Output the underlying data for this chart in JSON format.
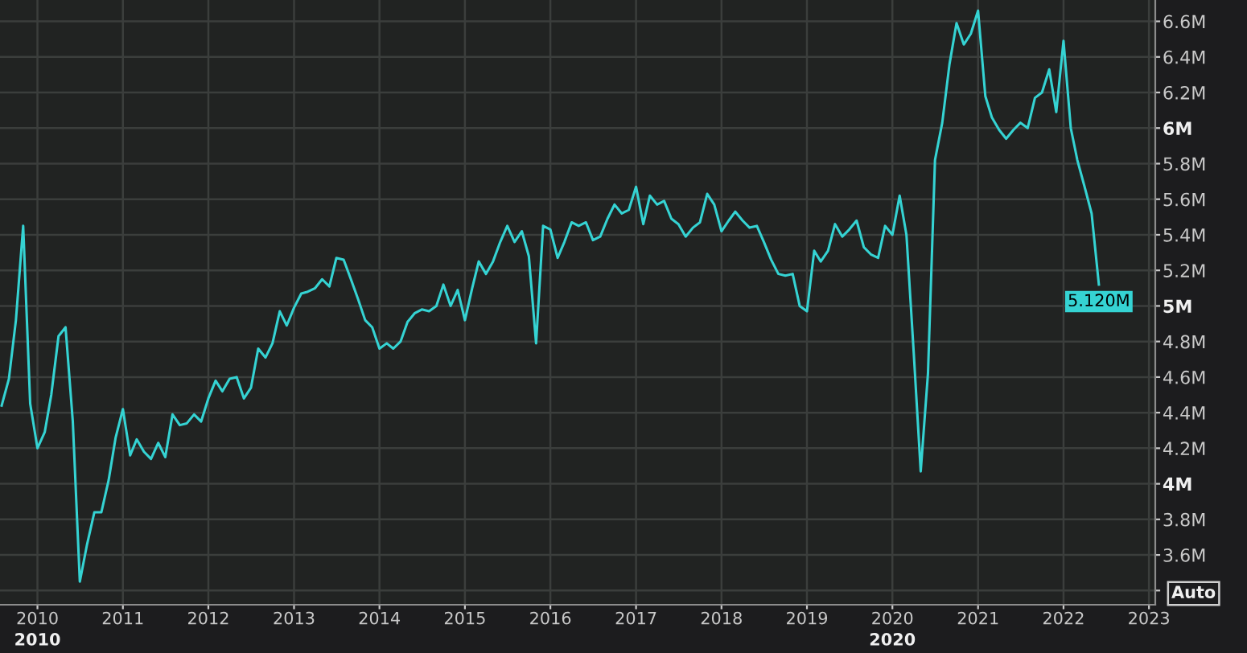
{
  "chart_data": {
    "type": "line",
    "x": [
      "2009-08",
      "2009-09",
      "2009-10",
      "2009-11",
      "2009-12",
      "2010-01",
      "2010-02",
      "2010-03",
      "2010-04",
      "2010-05",
      "2010-06",
      "2010-07",
      "2010-08",
      "2010-09",
      "2010-10",
      "2010-11",
      "2010-12",
      "2011-01",
      "2011-02",
      "2011-03",
      "2011-04",
      "2011-05",
      "2011-06",
      "2011-07",
      "2011-08",
      "2011-09",
      "2011-10",
      "2011-11",
      "2011-12",
      "2012-01",
      "2012-02",
      "2012-03",
      "2012-04",
      "2012-05",
      "2012-06",
      "2012-07",
      "2012-08",
      "2012-09",
      "2012-10",
      "2012-11",
      "2012-12",
      "2013-01",
      "2013-02",
      "2013-03",
      "2013-04",
      "2013-05",
      "2013-06",
      "2013-07",
      "2013-08",
      "2013-09",
      "2013-10",
      "2013-11",
      "2013-12",
      "2014-01",
      "2014-02",
      "2014-03",
      "2014-04",
      "2014-05",
      "2014-06",
      "2014-07",
      "2014-08",
      "2014-09",
      "2014-10",
      "2014-11",
      "2014-12",
      "2015-01",
      "2015-02",
      "2015-03",
      "2015-04",
      "2015-05",
      "2015-06",
      "2015-07",
      "2015-08",
      "2015-09",
      "2015-10",
      "2015-11",
      "2015-12",
      "2016-01",
      "2016-02",
      "2016-03",
      "2016-04",
      "2016-05",
      "2016-06",
      "2016-07",
      "2016-08",
      "2016-09",
      "2016-10",
      "2016-11",
      "2016-12",
      "2017-01",
      "2017-02",
      "2017-03",
      "2017-04",
      "2017-05",
      "2017-06",
      "2017-07",
      "2017-08",
      "2017-09",
      "2017-10",
      "2017-11",
      "2017-12",
      "2018-01",
      "2018-02",
      "2018-03",
      "2018-04",
      "2018-05",
      "2018-06",
      "2018-07",
      "2018-08",
      "2018-09",
      "2018-10",
      "2018-11",
      "2018-12",
      "2019-01",
      "2019-02",
      "2019-03",
      "2019-04",
      "2019-05",
      "2019-06",
      "2019-07",
      "2019-08",
      "2019-09",
      "2019-10",
      "2019-11",
      "2019-12",
      "2020-01",
      "2020-02",
      "2020-03",
      "2020-04",
      "2020-05",
      "2020-06",
      "2020-07",
      "2020-08",
      "2020-09",
      "2020-10",
      "2020-11",
      "2020-12",
      "2021-01",
      "2021-02",
      "2021-03",
      "2021-04",
      "2021-05",
      "2021-06",
      "2021-07",
      "2021-08",
      "2021-09",
      "2021-10",
      "2021-11",
      "2021-12",
      "2022-01",
      "2022-02",
      "2022-03",
      "2022-04",
      "2022-05",
      "2022-06"
    ],
    "series": [
      {
        "color": "#35d3d3",
        "values": [
          4440000,
          4590000,
          4920000,
          5450000,
          4450000,
          4200000,
          4290000,
          4500000,
          4830000,
          4880000,
          4350000,
          3450000,
          3660000,
          3840000,
          3840000,
          4020000,
          4260000,
          4420000,
          4160000,
          4250000,
          4180000,
          4140000,
          4230000,
          4150000,
          4390000,
          4330000,
          4340000,
          4390000,
          4350000,
          4480000,
          4580000,
          4520000,
          4590000,
          4600000,
          4480000,
          4540000,
          4760000,
          4710000,
          4790000,
          4970000,
          4890000,
          4990000,
          5070000,
          5080000,
          5100000,
          5150000,
          5110000,
          5270000,
          5260000,
          5150000,
          5040000,
          4920000,
          4880000,
          4760000,
          4790000,
          4760000,
          4800000,
          4910000,
          4960000,
          4980000,
          4970000,
          5000000,
          5120000,
          5000000,
          5090000,
          4920000,
          5100000,
          5250000,
          5180000,
          5250000,
          5360000,
          5450000,
          5360000,
          5420000,
          5280000,
          4790000,
          5450000,
          5430000,
          5270000,
          5360000,
          5470000,
          5450000,
          5470000,
          5370000,
          5390000,
          5490000,
          5570000,
          5520000,
          5540000,
          5670000,
          5460000,
          5620000,
          5570000,
          5590000,
          5490000,
          5460000,
          5390000,
          5440000,
          5470000,
          5630000,
          5570000,
          5420000,
          5480000,
          5530000,
          5480000,
          5440000,
          5450000,
          5360000,
          5260000,
          5180000,
          5170000,
          5180000,
          5000000,
          4970000,
          5310000,
          5250000,
          5310000,
          5460000,
          5390000,
          5430000,
          5480000,
          5330000,
          5290000,
          5270000,
          5450000,
          5400000,
          5620000,
          5400000,
          4740000,
          4070000,
          4620000,
          5820000,
          6030000,
          6360000,
          6590000,
          6470000,
          6530000,
          6660000,
          6180000,
          6060000,
          5990000,
          5940000,
          5990000,
          6030000,
          6000000,
          6170000,
          6200000,
          6330000,
          6090000,
          6490000,
          6000000,
          5820000,
          5670000,
          5520000,
          5120000
        ]
      }
    ],
    "xlim": [
      "2009-07-25",
      "2023-01-28"
    ],
    "xticks": [
      "2010",
      "2011",
      "2012",
      "2013",
      "2014",
      "2015",
      "2016",
      "2017",
      "2018",
      "2019",
      "2020",
      "2021",
      "2022",
      "2023"
    ],
    "x2lim": [
      "2009-07-25",
      "2023-01-28"
    ],
    "x2ticks": [
      "2010",
      "2020"
    ],
    "ylim": [
      3320000,
      6720000
    ],
    "yticks": [
      {
        "value": 3400000,
        "label": null
      },
      {
        "value": 3600000,
        "label": "3.6M"
      },
      {
        "value": 3800000,
        "label": "3.8M"
      },
      {
        "value": 4000000,
        "label": "4M"
      },
      {
        "value": 4200000,
        "label": "4.2M"
      },
      {
        "value": 4400000,
        "label": "4.4M"
      },
      {
        "value": 4600000,
        "label": "4.6M"
      },
      {
        "value": 4800000,
        "label": "4.8M"
      },
      {
        "value": 5000000,
        "label": "5M"
      },
      {
        "value": 5200000,
        "label": "5.2M"
      },
      {
        "value": 5400000,
        "label": "5.4M"
      },
      {
        "value": 5600000,
        "label": "5.6M"
      },
      {
        "value": 5800000,
        "label": "5.8M"
      },
      {
        "value": 6000000,
        "label": "6M"
      },
      {
        "value": 6200000,
        "label": "6.2M"
      },
      {
        "value": 6400000,
        "label": "6.4M"
      },
      {
        "value": 6600000,
        "label": "6.6M"
      }
    ],
    "grid": true,
    "annotations": [
      {
        "text": "5.120M",
        "x": "2022-06",
        "y": 5120000
      },
      "Auto"
    ]
  }
}
